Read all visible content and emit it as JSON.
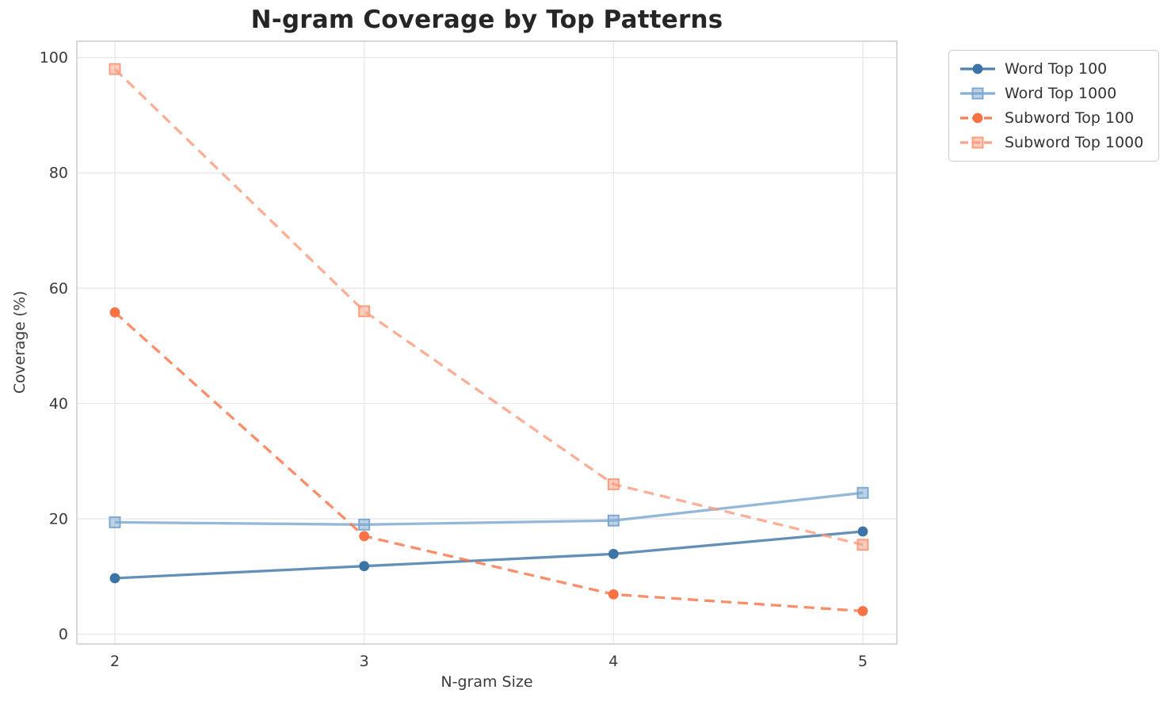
{
  "figure": {
    "background_color": "#ffffff",
    "grid_color": "#e8e8eb",
    "spine_color": "#cccccc",
    "tick_label_color": "#3a3a3a",
    "title_color": "#262626"
  },
  "chart_data": {
    "type": "line",
    "title": "N-gram Coverage by Top Patterns",
    "xlabel": "N-gram Size",
    "ylabel": "Coverage (%)",
    "x": [
      2,
      3,
      4,
      5
    ],
    "xtick_labels": [
      "2",
      "3",
      "4",
      "5"
    ],
    "yticks": [
      0,
      20,
      40,
      60,
      80,
      100
    ],
    "ylim": [
      0,
      100
    ],
    "grid": true,
    "legend_position": "outside upper right",
    "series": [
      {
        "name": "Word Top 100",
        "values": [
          9.7,
          11.8,
          13.9,
          17.8
        ],
        "color": "#3d74a6",
        "marker": "circle",
        "linestyle": "solid"
      },
      {
        "name": "Word Top 1000",
        "values": [
          19.4,
          19.0,
          19.7,
          24.5
        ],
        "color": "#7ba6cf",
        "marker": "square",
        "linestyle": "solid"
      },
      {
        "name": "Subword Top 100",
        "values": [
          55.8,
          17.0,
          6.9,
          4.0
        ],
        "color": "#f97245",
        "marker": "circle",
        "linestyle": "dashed"
      },
      {
        "name": "Subword Top 1000",
        "values": [
          98.0,
          56.0,
          26.0,
          15.5
        ],
        "color": "#fa9b7c",
        "marker": "square",
        "linestyle": "dashed"
      }
    ]
  }
}
